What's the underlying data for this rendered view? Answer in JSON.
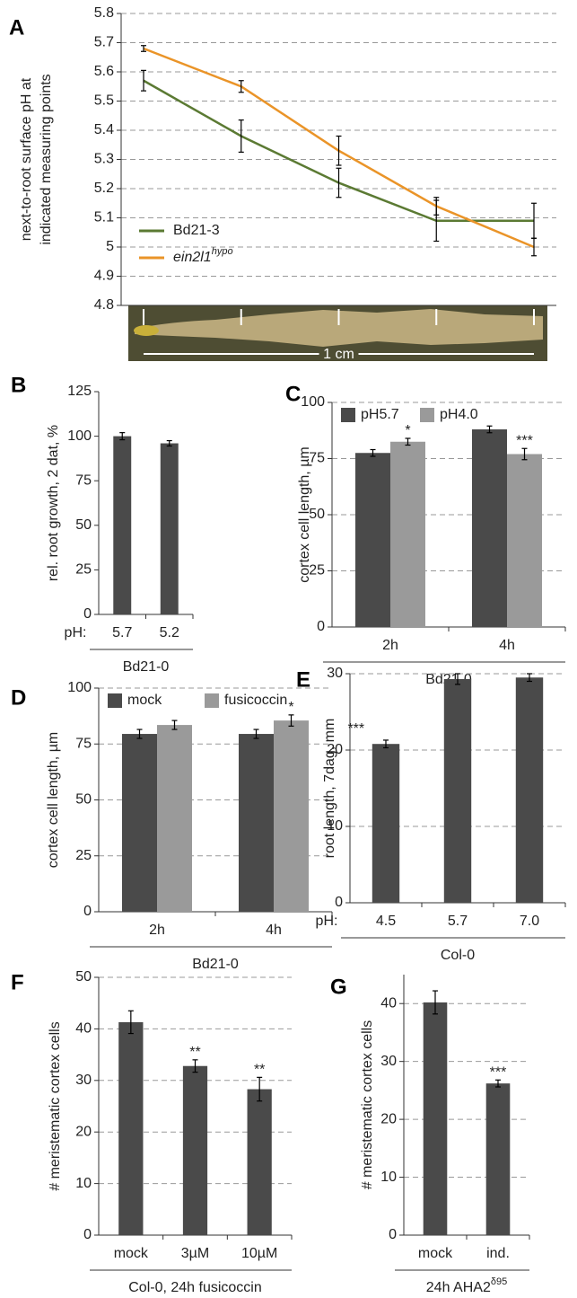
{
  "chart_data": [
    {
      "type": "line",
      "panel_label": "A",
      "y_label": [
        "next-to-root surface pH at",
        "indicated measuring points"
      ],
      "categories": [
        null,
        null,
        null,
        null,
        null
      ],
      "series": [
        {
          "name": "Bd21-3",
          "color": "#5b7a33",
          "values": [
            5.57,
            5.38,
            5.22,
            5.09,
            5.09
          ],
          "errors": [
            0.035,
            0.055,
            0.05,
            0.07,
            0.06
          ]
        },
        {
          "name": "ein2l1",
          "name_superscript": "hypo",
          "color": "#ea9428",
          "values": [
            5.68,
            5.55,
            5.33,
            5.14,
            5.0
          ],
          "errors": [
            0.01,
            0.02,
            0.05,
            0.03,
            0.03
          ]
        }
      ],
      "ylim": [
        4.8,
        5.8
      ],
      "yticks": [
        4.8,
        4.9,
        5.0,
        5.1,
        5.2,
        5.3,
        5.4,
        5.5,
        5.6,
        5.7,
        5.8
      ],
      "grid": true,
      "legend": "lower left",
      "annotation": "1 cm"
    },
    {
      "type": "bar",
      "panel_label": "B",
      "y_label": "rel. root growth, 2 dat, %",
      "category_prefix": "pH:",
      "categories": [
        "5.7",
        "5.2"
      ],
      "group_label": "Bd21-0",
      "series": [
        {
          "name": null,
          "color": "#4a4a4a",
          "values": [
            100,
            96
          ],
          "errors": [
            2,
            1.5
          ]
        }
      ],
      "ylim": [
        0,
        125
      ],
      "yticks": [
        0,
        25,
        50,
        75,
        100,
        125
      ],
      "grid": false
    },
    {
      "type": "bar",
      "panel_label": "C",
      "y_label": "cortex cell length, µm",
      "categories": [
        "2h",
        "4h"
      ],
      "group_label": "Bd21-0",
      "series": [
        {
          "name": "pH5.7",
          "color": "#4a4a4a",
          "values": [
            77.5,
            88
          ],
          "errors": [
            1.5,
            1.5
          ]
        },
        {
          "name": "pH4.0",
          "color": "#9a9a9a",
          "values": [
            82.5,
            77
          ],
          "errors": [
            1.5,
            2.5
          ],
          "stars": [
            "*",
            "***"
          ]
        }
      ],
      "ylim": [
        0,
        100
      ],
      "yticks": [
        0,
        25,
        50,
        75,
        100
      ],
      "grid": true,
      "legend": "upper left"
    },
    {
      "type": "bar",
      "panel_label": "D",
      "y_label": "cortex cell length, µm",
      "categories": [
        "2h",
        "4h"
      ],
      "group_label": "Bd21-0",
      "series": [
        {
          "name": "mock",
          "color": "#4a4a4a",
          "values": [
            79.5,
            79.5
          ],
          "errors": [
            2,
            2
          ]
        },
        {
          "name": "fusicoccin",
          "color": "#9a9a9a",
          "values": [
            83.5,
            85.5
          ],
          "errors": [
            2,
            2.5
          ],
          "stars": [
            null,
            "*"
          ]
        }
      ],
      "ylim": [
        0,
        100
      ],
      "yticks": [
        0,
        25,
        50,
        75,
        100
      ],
      "grid": true,
      "legend": "upper left"
    },
    {
      "type": "bar",
      "panel_label": "E",
      "y_label": "root length, 7dag, mm",
      "category_prefix": "pH:",
      "categories": [
        "4.5",
        "5.7",
        "7.0"
      ],
      "group_label": "Col-0",
      "series": [
        {
          "name": null,
          "color": "#4a4a4a",
          "values": [
            20.8,
            29.3,
            29.5
          ],
          "errors": [
            0.5,
            0.7,
            0.5
          ],
          "stars": [
            "***",
            null,
            null
          ]
        }
      ],
      "ylim": [
        0,
        30
      ],
      "yticks": [
        0,
        10,
        20,
        30
      ],
      "grid": true
    },
    {
      "type": "bar",
      "panel_label": "F",
      "y_label": "# meristematic cortex cells",
      "categories": [
        "mock",
        "3µM",
        "10µM"
      ],
      "group_label": "Col-0, 24h fusicoccin",
      "series": [
        {
          "name": null,
          "color": "#4a4a4a",
          "values": [
            41.3,
            32.8,
            28.3
          ],
          "errors": [
            2.2,
            1.2,
            2.3
          ],
          "stars": [
            null,
            "**",
            "**"
          ]
        }
      ],
      "ylim": [
        0,
        50
      ],
      "yticks": [
        0,
        10,
        20,
        30,
        40,
        50
      ],
      "grid": true
    },
    {
      "type": "bar",
      "panel_label": "G",
      "y_label": "# meristematic cortex cells",
      "categories": [
        "mock",
        "ind."
      ],
      "group_label": "24h AHA2",
      "group_label_superscript": "δ95",
      "series": [
        {
          "name": null,
          "color": "#4a4a4a",
          "values": [
            40.2,
            26.2
          ],
          "errors": [
            2,
            0.6
          ],
          "stars": [
            null,
            "***"
          ]
        }
      ],
      "ylim": [
        0,
        45
      ],
      "yticks": [
        0,
        10,
        20,
        30,
        40
      ],
      "grid": true
    }
  ]
}
